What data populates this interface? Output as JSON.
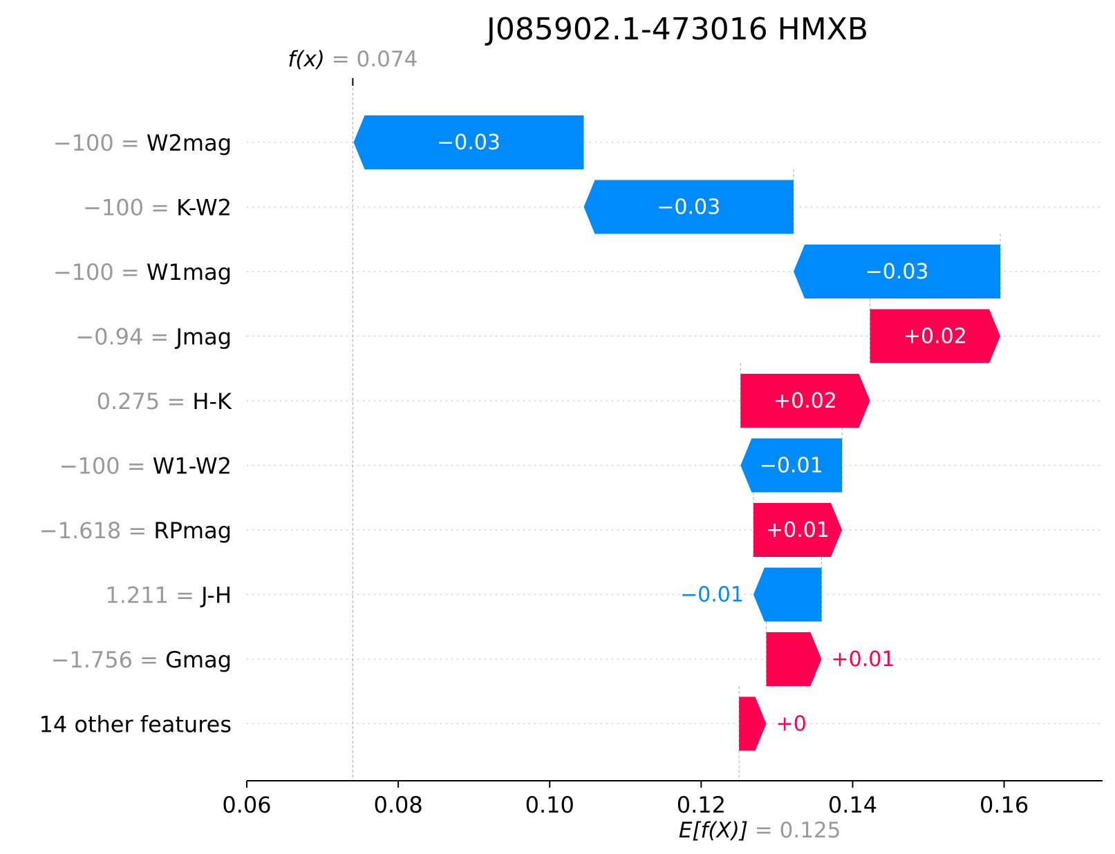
{
  "chart_data": {
    "type": "waterfall",
    "title": "J085902.1-473016 HMXB",
    "fx": {
      "symbol": "f(x)",
      "eq": " = 0.074",
      "value": 0.074
    },
    "expected": {
      "symbol": "E[f(X)]",
      "eq": " = 0.125",
      "value": 0.125
    },
    "xlim": [
      0.06,
      0.173
    ],
    "xticks": [
      0.06,
      0.08,
      0.1,
      0.12,
      0.14,
      0.16
    ],
    "xtick_labels": [
      "0.06",
      "0.08",
      "0.10",
      "0.12",
      "0.14",
      "0.16"
    ],
    "features": [
      {
        "value_text": "−100 = ",
        "name": "W2mag",
        "start": 0.1045,
        "end": 0.0741,
        "label": "−0.03"
      },
      {
        "value_text": "−100 = ",
        "name": "K-W2",
        "start": 0.1322,
        "end": 0.1045,
        "label": "−0.03"
      },
      {
        "value_text": "−100 = ",
        "name": "W1mag",
        "start": 0.1595,
        "end": 0.1322,
        "label": "−0.03"
      },
      {
        "value_text": "−0.94 = ",
        "name": "Jmag",
        "start": 0.1423,
        "end": 0.1595,
        "label": "+0.02"
      },
      {
        "value_text": "0.275 = ",
        "name": "H-K",
        "start": 0.1252,
        "end": 0.1423,
        "label": "+0.02"
      },
      {
        "value_text": "−100 = ",
        "name": "W1-W2",
        "start": 0.1386,
        "end": 0.1252,
        "label": "−0.01"
      },
      {
        "value_text": "−1.618 = ",
        "name": "RPmag",
        "start": 0.1269,
        "end": 0.1386,
        "label": "+0.01"
      },
      {
        "value_text": "1.211 = ",
        "name": "J-H",
        "start": 0.1359,
        "end": 0.1269,
        "label": "−0.01"
      },
      {
        "value_text": "−1.756 = ",
        "name": "Gmag",
        "start": 0.1286,
        "end": 0.1359,
        "label": "+0.01"
      },
      {
        "value_text": "",
        "name": "14 other features",
        "start": 0.125,
        "end": 0.1286,
        "label": "+0"
      }
    ],
    "colors": {
      "positive": "#ff0051",
      "negative": "#008bfb",
      "axis": "#000000",
      "guide": "#aaaaaa",
      "grid": "#cccccc",
      "muted": "#999999"
    }
  }
}
